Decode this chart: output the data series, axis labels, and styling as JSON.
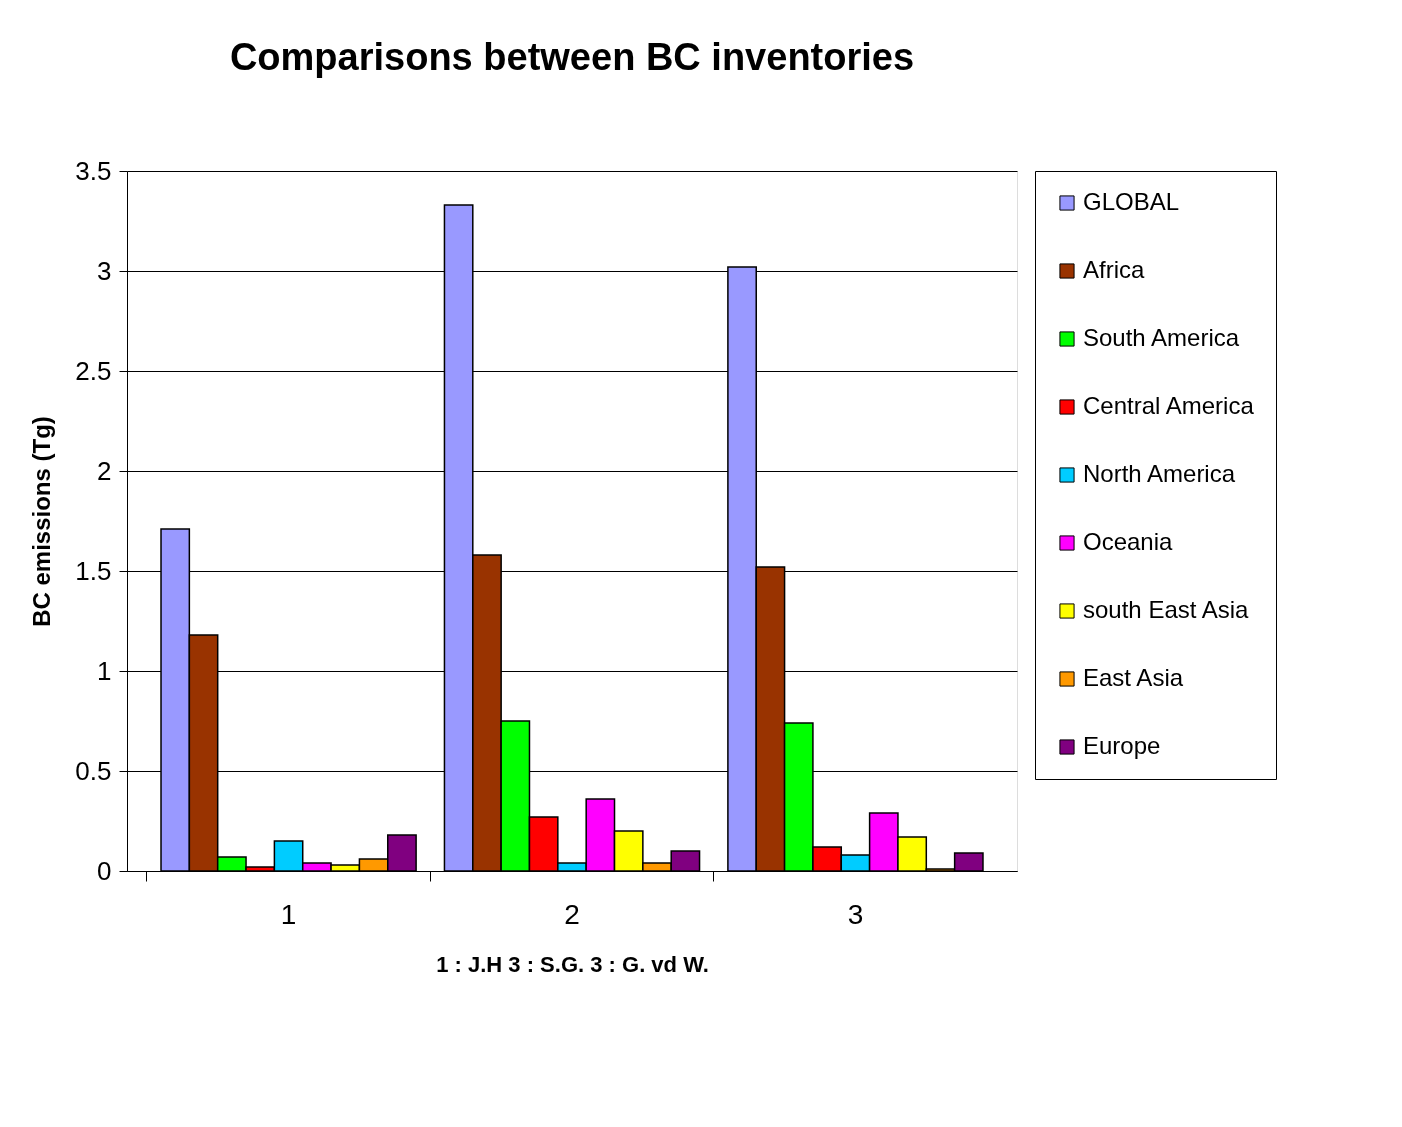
{
  "chart_data": {
    "type": "bar",
    "title": "Comparisons between BC inventories",
    "ylabel": "BC emissions (Tg)",
    "categories": [
      "1",
      "2",
      "3"
    ],
    "series": [
      {
        "name": "GLOBAL",
        "color": "#9999ff",
        "values": [
          1.71,
          3.33,
          3.02
        ]
      },
      {
        "name": "Africa",
        "color": "#993300",
        "values": [
          1.18,
          1.58,
          1.52
        ]
      },
      {
        "name": "South America",
        "color": "#00ff00",
        "values": [
          0.07,
          0.75,
          0.74
        ]
      },
      {
        "name": "Central America",
        "color": "#ff0000",
        "values": [
          0.02,
          0.27,
          0.12
        ]
      },
      {
        "name": "North America",
        "color": "#00ccff",
        "values": [
          0.15,
          0.04,
          0.08
        ]
      },
      {
        "name": "Oceania",
        "color": "#ff00ff",
        "values": [
          0.04,
          0.36,
          0.29
        ]
      },
      {
        "name": "south East Asia",
        "color": "#ffff00",
        "values": [
          0.03,
          0.2,
          0.17
        ]
      },
      {
        "name": "East Asia",
        "color": "#ff9900",
        "values": [
          0.06,
          0.04,
          0.01
        ]
      },
      {
        "name": "Europe",
        "color": "#800080",
        "values": [
          0.18,
          0.1,
          0.09
        ]
      }
    ],
    "ylim": [
      0,
      3.5
    ],
    "yticks": [
      0,
      0.5,
      1,
      1.5,
      2,
      2.5,
      3,
      3.5
    ],
    "grid": "y",
    "legend": "right",
    "annotations": [
      "1 : J.H     3 : S.G.     3 : G. vd W."
    ]
  }
}
